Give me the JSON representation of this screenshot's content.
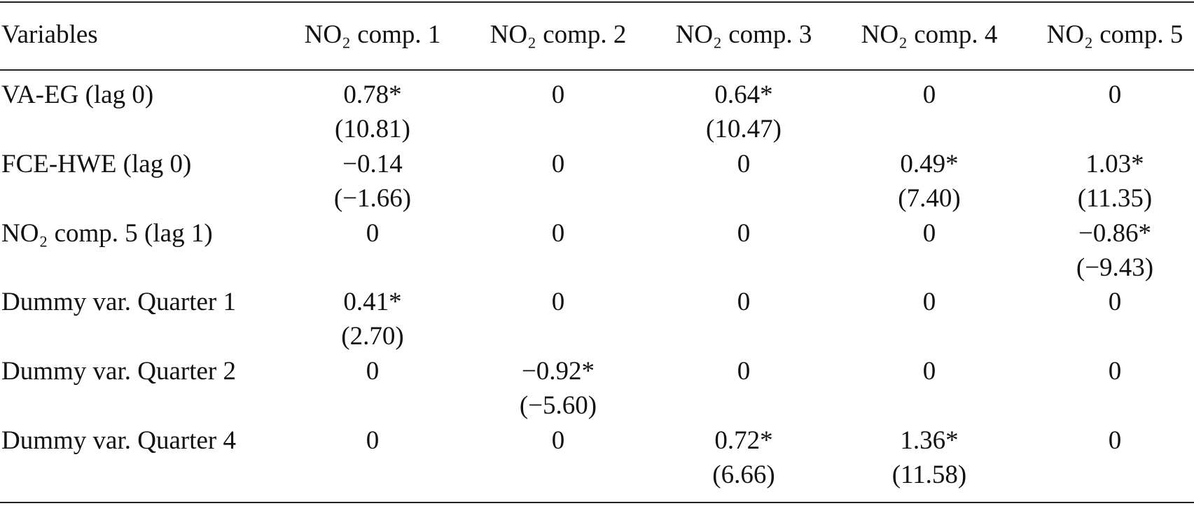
{
  "table": {
    "header": [
      "Variables",
      "NO₂ comp. 1",
      "NO₂ comp. 2",
      "NO₂ comp. 3",
      "NO₂ comp. 4",
      "NO₂ comp. 5"
    ],
    "rows": [
      {
        "label": "VA-EG (lag 0)",
        "cells": [
          {
            "coef": "0.78*",
            "t": "(10.81)"
          },
          {
            "coef": "0"
          },
          {
            "coef": "0.64*",
            "t": "(10.47)"
          },
          {
            "coef": "0"
          },
          {
            "coef": "0"
          }
        ]
      },
      {
        "label": "FCE-HWE (lag 0)",
        "cells": [
          {
            "coef": "−0.14",
            "t": "(−1.66)"
          },
          {
            "coef": "0"
          },
          {
            "coef": "0"
          },
          {
            "coef": "0.49*",
            "t": "(7.40)"
          },
          {
            "coef": "1.03*",
            "t": "(11.35)"
          }
        ]
      },
      {
        "label": "NO₂ comp. 5 (lag 1)",
        "cells": [
          {
            "coef": "0"
          },
          {
            "coef": "0"
          },
          {
            "coef": "0"
          },
          {
            "coef": "0"
          },
          {
            "coef": "−0.86*",
            "t": "(−9.43)"
          }
        ]
      },
      {
        "label": "Dummy var. Quarter 1",
        "cells": [
          {
            "coef": "0.41*",
            "t": "(2.70)"
          },
          {
            "coef": "0"
          },
          {
            "coef": "0"
          },
          {
            "coef": "0"
          },
          {
            "coef": "0"
          }
        ]
      },
      {
        "label": "Dummy var. Quarter 2",
        "cells": [
          {
            "coef": "0"
          },
          {
            "coef": "−0.92*",
            "t": "(−5.60)"
          },
          {
            "coef": "0"
          },
          {
            "coef": "0"
          },
          {
            "coef": "0"
          }
        ]
      },
      {
        "label": "Dummy var. Quarter 4",
        "cells": [
          {
            "coef": "0"
          },
          {
            "coef": "0"
          },
          {
            "coef": "0.72*",
            "t": "(6.66)"
          },
          {
            "coef": "1.36*",
            "t": "(11.58)"
          },
          {
            "coef": "0"
          }
        ]
      }
    ]
  }
}
